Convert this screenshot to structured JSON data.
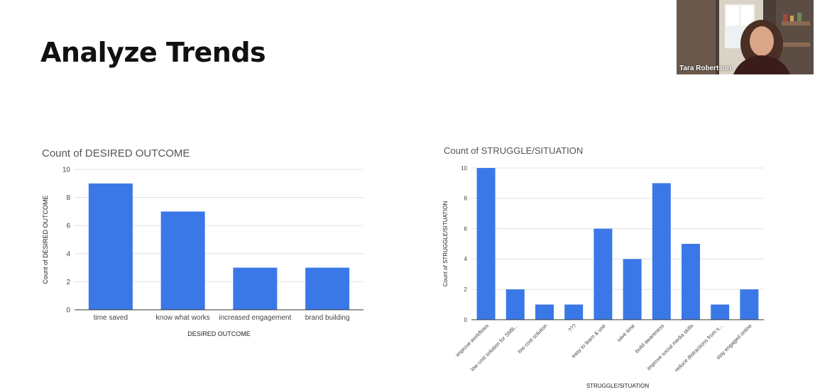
{
  "slide": {
    "title": "Analyze Trends"
  },
  "video": {
    "participant_name": "Tara Robertson"
  },
  "colors": {
    "bar": "#3b78e7",
    "grid": "#e0e0e0",
    "axis": "#333333"
  },
  "chart_data": [
    {
      "type": "bar",
      "title": "Count of DESIRED OUTCOME",
      "xlabel": "DESIRED OUTCOME",
      "ylabel": "Count of DESIRED OUTCOME",
      "categories": [
        "time saved",
        "know what works",
        "increased engagement",
        "brand building"
      ],
      "values": [
        9,
        7,
        3,
        3
      ],
      "yticks": [
        "0",
        "2",
        "4",
        "6",
        "8",
        "10"
      ],
      "ylim": [
        0,
        10
      ],
      "grid": true,
      "legend": "none"
    },
    {
      "type": "bar",
      "title": "Count of STRUGGLE/SITUATION",
      "xlabel": "STRUGGLE/SITUATION",
      "ylabel": "Count of STRUGGLE/SITUATION",
      "categories": [
        "improve workflows",
        "low cost solution for SMB...",
        "low cost solution",
        "???",
        "easy to learn & use",
        "save time",
        "build awareness",
        "improve social media skills",
        "reduce distractions from s...",
        "stay engaged online"
      ],
      "values": [
        10,
        2,
        1,
        1,
        6,
        4,
        9,
        5,
        1,
        2
      ],
      "yticks": [
        "0",
        "2",
        "4",
        "6",
        "8",
        "10"
      ],
      "ylim": [
        0,
        10
      ],
      "grid": true,
      "legend": "none"
    }
  ]
}
